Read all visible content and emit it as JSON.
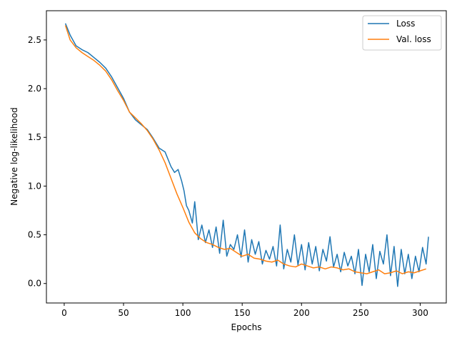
{
  "chart_data": {
    "type": "line",
    "title": "",
    "xlabel": "Epochs",
    "ylabel": "Negative log-likelihood",
    "xlim": [
      -15,
      322
    ],
    "ylim": [
      -0.2,
      2.8
    ],
    "xticks": [
      0,
      50,
      100,
      150,
      200,
      250,
      300
    ],
    "yticks": [
      0.0,
      0.5,
      1.0,
      1.5,
      2.0,
      2.5
    ],
    "xtick_labels": [
      "0",
      "50",
      "100",
      "150",
      "200",
      "250",
      "300"
    ],
    "ytick_labels": [
      "0.0",
      "0.5",
      "1.0",
      "1.5",
      "2.0",
      "2.5"
    ],
    "grid": false,
    "legend_position": "top-right",
    "series": [
      {
        "name": "Loss",
        "color": "#1f77b4",
        "x": [
          1,
          5,
          10,
          15,
          20,
          25,
          30,
          35,
          40,
          45,
          50,
          55,
          60,
          65,
          70,
          75,
          80,
          85,
          90,
          93,
          96,
          99,
          101,
          103,
          105,
          108,
          110,
          113,
          116,
          119,
          122,
          125,
          128,
          131,
          134,
          137,
          140,
          143,
          146,
          149,
          152,
          155,
          158,
          161,
          164,
          167,
          170,
          173,
          176,
          179,
          182,
          185,
          188,
          191,
          194,
          197,
          200,
          203,
          206,
          209,
          212,
          215,
          218,
          221,
          224,
          227,
          230,
          233,
          236,
          239,
          242,
          245,
          248,
          251,
          254,
          257,
          260,
          263,
          266,
          269,
          272,
          275,
          278,
          281,
          284,
          287,
          290,
          293,
          296,
          299,
          302,
          305,
          307
        ],
        "values": [
          2.67,
          2.55,
          2.44,
          2.4,
          2.37,
          2.32,
          2.27,
          2.21,
          2.12,
          2.01,
          1.9,
          1.76,
          1.68,
          1.63,
          1.58,
          1.49,
          1.39,
          1.35,
          1.2,
          1.14,
          1.17,
          1.05,
          0.95,
          0.8,
          0.75,
          0.62,
          0.84,
          0.45,
          0.6,
          0.42,
          0.55,
          0.37,
          0.58,
          0.31,
          0.65,
          0.28,
          0.4,
          0.35,
          0.5,
          0.27,
          0.55,
          0.22,
          0.45,
          0.3,
          0.43,
          0.2,
          0.34,
          0.25,
          0.38,
          0.18,
          0.6,
          0.15,
          0.35,
          0.22,
          0.5,
          0.19,
          0.4,
          0.14,
          0.42,
          0.2,
          0.38,
          0.13,
          0.35,
          0.23,
          0.48,
          0.17,
          0.3,
          0.12,
          0.32,
          0.18,
          0.28,
          0.1,
          0.35,
          -0.02,
          0.3,
          0.12,
          0.4,
          0.05,
          0.33,
          0.2,
          0.5,
          0.08,
          0.38,
          -0.03,
          0.35,
          0.1,
          0.3,
          0.05,
          0.28,
          0.12,
          0.37,
          0.2,
          0.48
        ]
      },
      {
        "name": "Val. loss",
        "color": "#ff7f0e",
        "x": [
          1,
          5,
          10,
          15,
          20,
          25,
          30,
          35,
          40,
          45,
          50,
          55,
          60,
          65,
          70,
          75,
          80,
          85,
          90,
          95,
          100,
          105,
          110,
          115,
          120,
          125,
          130,
          135,
          140,
          145,
          150,
          155,
          160,
          165,
          170,
          175,
          180,
          185,
          190,
          195,
          200,
          205,
          210,
          215,
          220,
          225,
          230,
          235,
          240,
          245,
          250,
          255,
          260,
          265,
          270,
          275,
          280,
          285,
          290,
          295,
          300,
          305
        ],
        "values": [
          2.65,
          2.5,
          2.42,
          2.37,
          2.33,
          2.29,
          2.24,
          2.18,
          2.09,
          1.98,
          1.88,
          1.76,
          1.7,
          1.64,
          1.57,
          1.48,
          1.37,
          1.24,
          1.08,
          0.92,
          0.78,
          0.63,
          0.52,
          0.46,
          0.42,
          0.4,
          0.37,
          0.35,
          0.36,
          0.32,
          0.28,
          0.3,
          0.26,
          0.25,
          0.23,
          0.22,
          0.24,
          0.2,
          0.18,
          0.17,
          0.2,
          0.18,
          0.16,
          0.17,
          0.15,
          0.17,
          0.16,
          0.14,
          0.15,
          0.12,
          0.11,
          0.1,
          0.12,
          0.14,
          0.1,
          0.11,
          0.13,
          0.1,
          0.12,
          0.11,
          0.13,
          0.15
        ]
      }
    ]
  }
}
